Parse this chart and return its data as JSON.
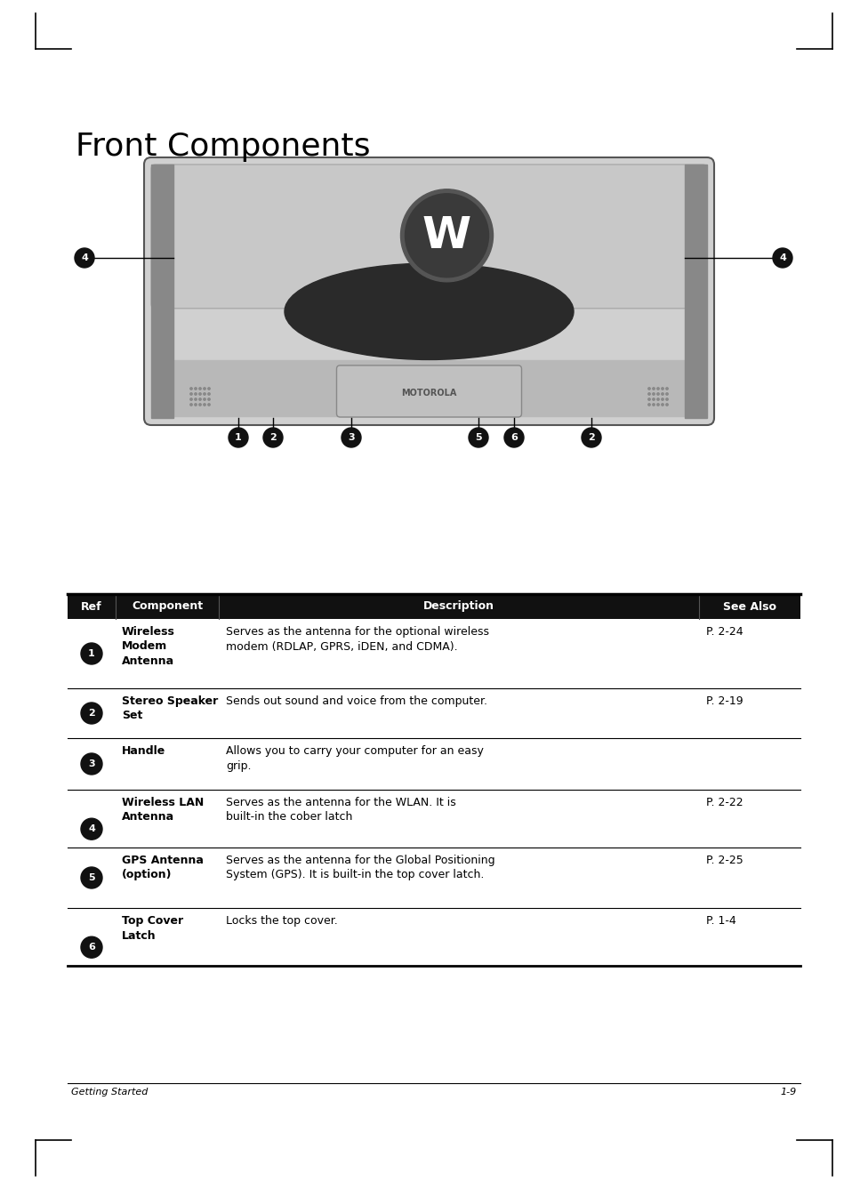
{
  "title": "Front Components",
  "footer_left": "Getting Started",
  "footer_right": "1-9",
  "bg_color": "#ffffff",
  "table_header": [
    "Ref",
    "Component",
    "Description",
    "See Also"
  ],
  "rows": [
    {
      "ref_num": "1",
      "component": "Wireless\nModem\nAntenna",
      "description": "Serves as the antenna for the optional wireless\nmodem (RDLAP, GPRS, iDEN, and CDMA).",
      "see_also": "P. 2-24"
    },
    {
      "ref_num": "2",
      "component": "Stereo Speaker\nSet",
      "description": "Sends out sound and voice from the computer.",
      "see_also": "P. 2-19"
    },
    {
      "ref_num": "3",
      "component": "Handle",
      "description": "Allows you to carry your computer for an easy\ngrip.",
      "see_also": ""
    },
    {
      "ref_num": "4",
      "component": "Wireless LAN\nAntenna",
      "description": "Serves as the antenna for the WLAN. It is\nbuilt-in the cober latch",
      "see_also": "P. 2-22"
    },
    {
      "ref_num": "5",
      "component": "GPS Antenna\n(option)",
      "description": "Serves as the antenna for the Global Positioning\nSystem (GPS). It is built-in the top cover latch.",
      "see_also": "P. 2-25"
    },
    {
      "ref_num": "6",
      "component": "Top Cover\nLatch",
      "description": "Locks the top cover.",
      "see_also": "P. 1-4"
    }
  ]
}
